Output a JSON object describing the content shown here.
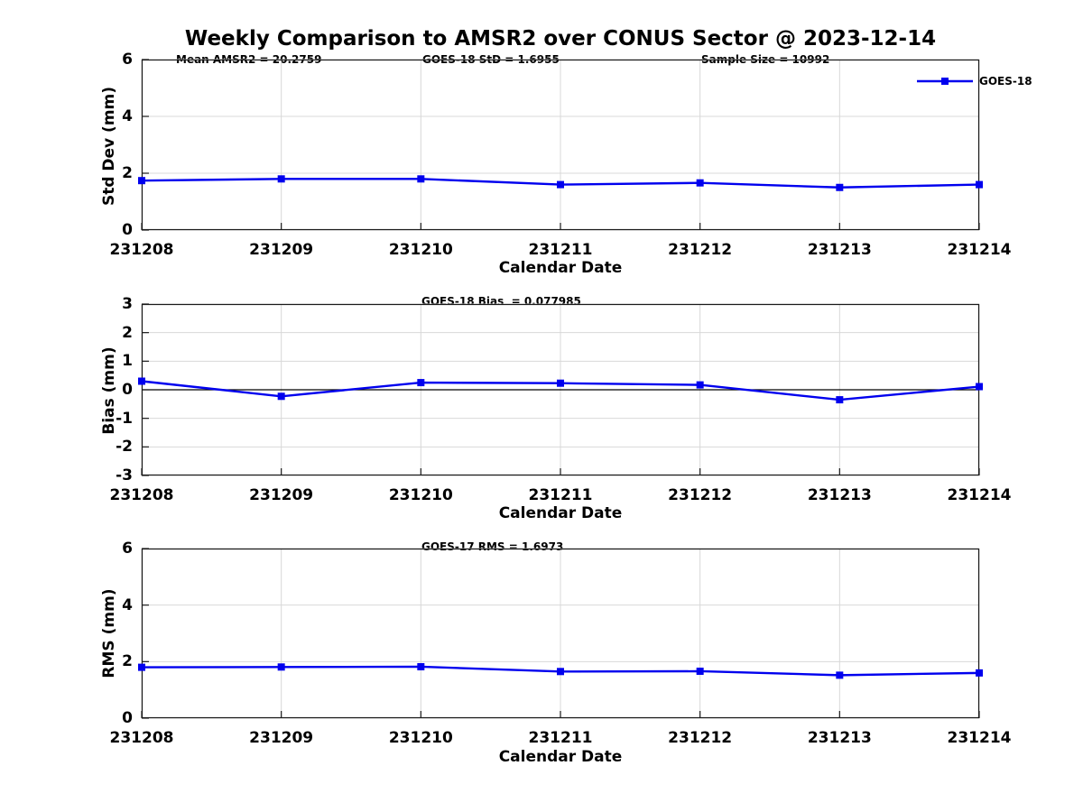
{
  "title": "Weekly Comparison to AMSR2 over CONUS Sector @ 2023-12-14",
  "legend": {
    "label": "GOES-18"
  },
  "palette": {
    "line": "#0000ee",
    "marker": "#0000ee",
    "grid": "#d8d8d8",
    "axis": "#1a1a1a",
    "zero_line": "#000000",
    "background": "#ffffff",
    "text": "#000000"
  },
  "chart_data": [
    {
      "type": "line",
      "panel": "std-dev",
      "annotations": [
        "Mean AMSR2 = 20.2759",
        "GOES-18 StD = 1.6955",
        "Sample Size = 10992"
      ],
      "ylabel": "Std Dev (mm)",
      "xlabel": "Calendar Date",
      "ylim": [
        0,
        6
      ],
      "yticks": [
        0,
        2,
        4,
        6
      ],
      "grid": true,
      "legend_position": "top-right",
      "categories": [
        "231208",
        "231209",
        "231210",
        "231211",
        "231212",
        "231213",
        "231214"
      ],
      "series": [
        {
          "name": "GOES-18",
          "values": [
            1.74,
            1.8,
            1.8,
            1.6,
            1.66,
            1.5,
            1.6
          ]
        }
      ]
    },
    {
      "type": "line",
      "panel": "bias",
      "annotations": [
        "GOES-18 Bias  = 0.077985"
      ],
      "ylabel": "Bias (mm)",
      "xlabel": "Calendar Date",
      "ylim": [
        -3,
        3
      ],
      "yticks": [
        3,
        2,
        1,
        0,
        -1,
        -2,
        -3
      ],
      "zero_line": true,
      "grid": true,
      "categories": [
        "231208",
        "231209",
        "231210",
        "231211",
        "231212",
        "231213",
        "231214"
      ],
      "series": [
        {
          "name": "GOES-18",
          "values": [
            0.3,
            -0.23,
            0.25,
            0.23,
            0.17,
            -0.35,
            0.11
          ]
        }
      ]
    },
    {
      "type": "line",
      "panel": "rms",
      "annotations": [
        "GOES-17 RMS = 1.6973"
      ],
      "ylabel": "RMS (mm)",
      "xlabel": "Calendar Date",
      "ylim": [
        0,
        6
      ],
      "yticks": [
        0,
        2,
        4,
        6
      ],
      "grid": true,
      "categories": [
        "231208",
        "231209",
        "231210",
        "231211",
        "231212",
        "231213",
        "231214"
      ],
      "series": [
        {
          "name": "GOES-18",
          "values": [
            1.8,
            1.81,
            1.82,
            1.65,
            1.66,
            1.52,
            1.6
          ]
        }
      ]
    }
  ]
}
